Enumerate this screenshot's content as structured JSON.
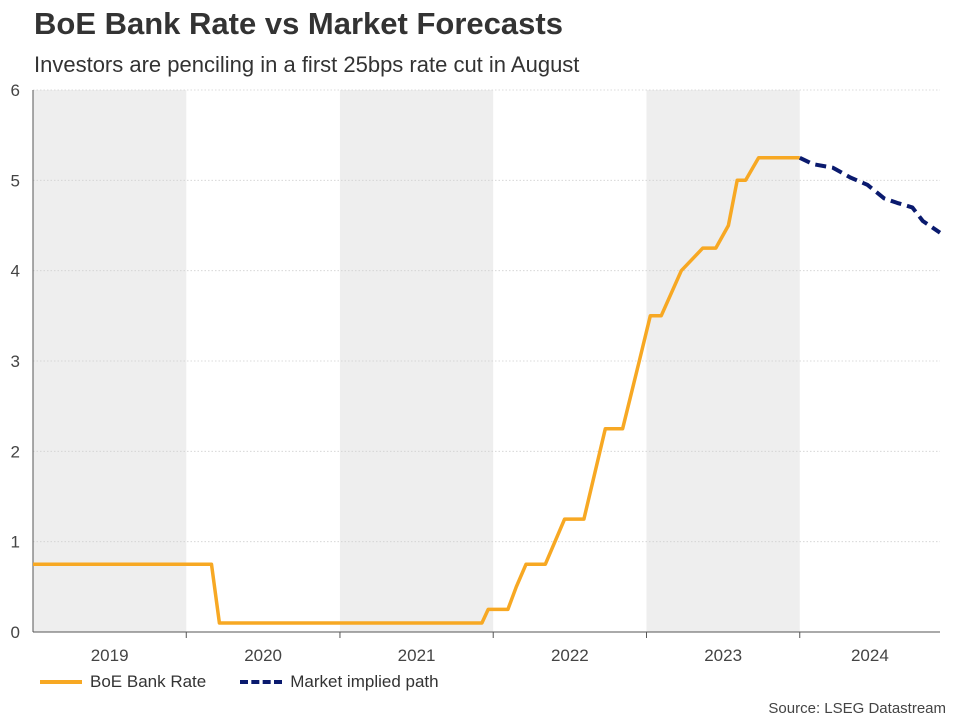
{
  "title": "BoE Bank Rate vs Market Forecasts",
  "subtitle": "Investors are penciling in a first 25bps rate cut in August",
  "source": "Source: LSEG Datastream",
  "colors": {
    "bank_rate": "#f7a823",
    "market_path": "#0a1a6e",
    "band": "#eeeeee",
    "grid": "#d0d0d0",
    "axis": "#555555"
  },
  "chart_data": {
    "type": "line",
    "title": "BoE Bank Rate vs Market Forecasts",
    "subtitle": "Investors are penciling in a first 25bps rate cut in August",
    "ylim": [
      0,
      6
    ],
    "xlim": [
      "2019-01-01",
      "2024-11-30"
    ],
    "y_ticks": [
      0,
      1,
      2,
      3,
      4,
      5,
      6
    ],
    "year_labels": [
      "2019",
      "2020",
      "2021",
      "2022",
      "2023",
      "2024"
    ],
    "shaded_years": [
      "2019",
      "2021",
      "2023"
    ],
    "grid": true,
    "legend_position": "bottom-left",
    "series": [
      {
        "name": "BoE Bank Rate",
        "color": "#f7a823",
        "style": "solid",
        "points": [
          [
            "2019-01-01",
            0.75
          ],
          [
            "2020-03-01",
            0.75
          ],
          [
            "2020-03-20",
            0.1
          ],
          [
            "2021-12-05",
            0.1
          ],
          [
            "2021-12-20",
            0.25
          ],
          [
            "2022-02-05",
            0.25
          ],
          [
            "2022-02-25",
            0.5
          ],
          [
            "2022-03-20",
            0.75
          ],
          [
            "2022-05-05",
            0.75
          ],
          [
            "2022-06-20",
            1.25
          ],
          [
            "2022-08-05",
            1.25
          ],
          [
            "2022-09-25",
            2.25
          ],
          [
            "2022-11-05",
            2.25
          ],
          [
            "2022-12-15",
            3.0
          ],
          [
            "2023-01-10",
            3.5
          ],
          [
            "2023-02-05",
            3.5
          ],
          [
            "2023-03-25",
            4.0
          ],
          [
            "2023-05-15",
            4.25
          ],
          [
            "2023-06-15",
            4.25
          ],
          [
            "2023-07-15",
            4.5
          ],
          [
            "2023-08-05",
            5.0
          ],
          [
            "2023-08-25",
            5.0
          ],
          [
            "2023-09-25",
            5.25
          ],
          [
            "2024-01-01",
            5.25
          ]
        ]
      },
      {
        "name": "Market implied path",
        "color": "#0a1a6e",
        "style": "dashed",
        "points": [
          [
            "2024-01-01",
            5.25
          ],
          [
            "2024-02-01",
            5.18
          ],
          [
            "2024-03-20",
            5.14
          ],
          [
            "2024-05-01",
            5.03
          ],
          [
            "2024-06-10",
            4.95
          ],
          [
            "2024-07-20",
            4.8
          ],
          [
            "2024-08-20",
            4.75
          ],
          [
            "2024-09-25",
            4.7
          ],
          [
            "2024-10-20",
            4.55
          ],
          [
            "2024-11-30",
            4.42
          ]
        ]
      }
    ]
  }
}
